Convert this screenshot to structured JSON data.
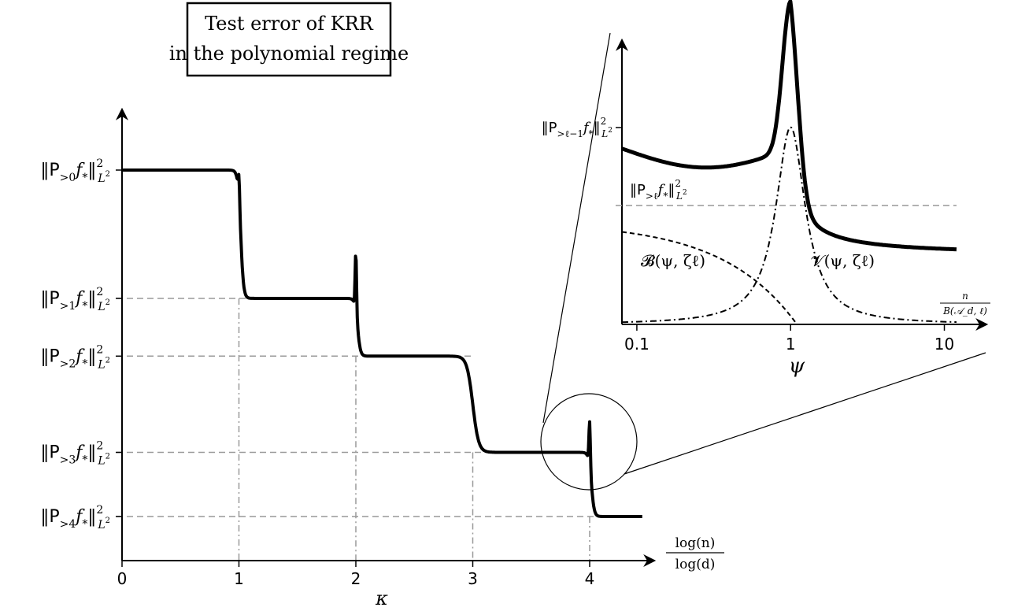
{
  "title_lines": [
    "Test error of KRR",
    "in the polynomial regime"
  ],
  "main": {
    "x_ticks": [
      0,
      1,
      2,
      3,
      4
    ],
    "x_tick_labels": [
      "0",
      "1",
      "2",
      "3",
      "4"
    ],
    "x_label_num": "log(n)",
    "x_label_den": "log(d)",
    "x_below_label": "κ",
    "y_labels": [
      {
        "pre": "‖P",
        "sub": ">0",
        "post": "f",
        "sub2": "*",
        "norm": "‖",
        "sup": "2",
        "lsub": "L²",
        "level": 0
      },
      {
        "pre": "‖P",
        "sub": ">1",
        "post": "f",
        "sub2": "*",
        "norm": "‖",
        "sup": "2",
        "lsub": "L²",
        "level": 1
      },
      {
        "pre": "‖P",
        "sub": ">2",
        "post": "f",
        "sub2": "*",
        "norm": "‖",
        "sup": "2",
        "lsub": "L²",
        "level": 2
      },
      {
        "pre": "‖P",
        "sub": ">3",
        "post": "f",
        "sub2": "*",
        "norm": "‖",
        "sup": "2",
        "lsub": "L²",
        "level": 3
      },
      {
        "pre": "‖P",
        "sub": ">4",
        "post": "f",
        "sub2": "*",
        "norm": "‖",
        "sup": "2",
        "lsub": "L²",
        "level": 4
      }
    ],
    "levels": [
      1.0,
      0.6,
      0.42,
      0.12,
      -0.08
    ]
  },
  "inset": {
    "x_ticks": [
      0.1,
      1,
      10
    ],
    "x_tick_labels": [
      "0.1",
      "1",
      "10"
    ],
    "x_below_label": "ψ",
    "x_label_num": "n",
    "x_label_den": "B(𝒜_d, ℓ)",
    "y_label_top": "‖P>ℓ−1f*‖²L²",
    "y_label_mid": "‖P>ℓf*‖²L²",
    "bias_label": "𝓑(ψ, ζℓ)",
    "variance_label": "𝓥(ψ, ζℓ)"
  },
  "chart_data": [
    {
      "type": "line",
      "title": "Test error of KRR in the polynomial regime",
      "xlabel": "log(n)/log(d)",
      "x_extra_label": "κ",
      "xlim": [
        0,
        4.5
      ],
      "x_ticks": [
        0,
        1,
        2,
        3,
        4
      ],
      "y_tick_labels": [
        "‖P>0f*‖²L²",
        "‖P>1f*‖²L²",
        "‖P>2f*‖²L²",
        "‖P>3f*‖²L²",
        "‖P>4f*‖²L²"
      ],
      "series": [
        {
          "x": [
            0,
            0.95,
            0.98,
            1.0,
            1.02,
            1.05,
            1.1,
            1.95,
            1.98,
            2.0,
            2.02,
            2.05,
            2.1,
            2.8,
            2.95,
            3.0,
            3.05,
            3.1,
            3.9,
            3.97,
            4.0,
            4.02,
            4.05,
            4.1,
            4.45
          ],
          "y": [
            1.0,
            1.0,
            0.99,
            1.07,
            0.7,
            0.62,
            0.6,
            0.6,
            0.61,
            0.78,
            0.47,
            0.43,
            0.42,
            0.42,
            0.39,
            0.2,
            0.13,
            0.12,
            0.12,
            0.12,
            0.26,
            0.0,
            -0.07,
            -0.08,
            -0.08
          ]
        }
      ]
    },
    {
      "type": "line",
      "xlabel": "n / B(𝒜_d, ℓ)",
      "x_extra_label": "ψ",
      "x_scale": "log",
      "xlim": [
        0.08,
        12
      ],
      "x_ticks": [
        0.1,
        1,
        10
      ],
      "series": [
        {
          "name": "𝓥(ψ, ζℓ) + 𝓑(ψ, ζℓ)",
          "x": [
            0.08,
            0.2,
            0.4,
            0.6,
            0.8,
            0.95,
            1.0,
            1.1,
            1.3,
            2,
            4,
            12
          ],
          "y": [
            0.5,
            0.48,
            0.43,
            0.5,
            0.75,
            1.0,
            1.1,
            0.85,
            0.62,
            0.4,
            0.33,
            0.3
          ]
        },
        {
          "name": "𝓑(ψ, ζℓ)",
          "x": [
            0.08,
            0.2,
            0.4,
            0.6,
            0.8,
            1.0,
            1.1
          ],
          "y": [
            0.42,
            0.38,
            0.28,
            0.16,
            0.06,
            0.01,
            0.0
          ]
        },
        {
          "name": "𝓥(ψ, ζℓ)",
          "x": [
            0.08,
            0.2,
            0.4,
            0.6,
            0.8,
            0.95,
            1.0,
            1.1,
            1.3,
            2,
            4,
            12
          ],
          "y": [
            0.0,
            0.04,
            0.12,
            0.28,
            0.55,
            0.8,
            0.83,
            0.65,
            0.4,
            0.15,
            0.05,
            0.01
          ]
        }
      ],
      "reference_lines": [
        {
          "label": "‖P>ℓ−1f*‖²L²",
          "y": 0.72
        },
        {
          "label": "‖P>ℓf*‖²L²",
          "y": 0.28
        }
      ]
    }
  ]
}
